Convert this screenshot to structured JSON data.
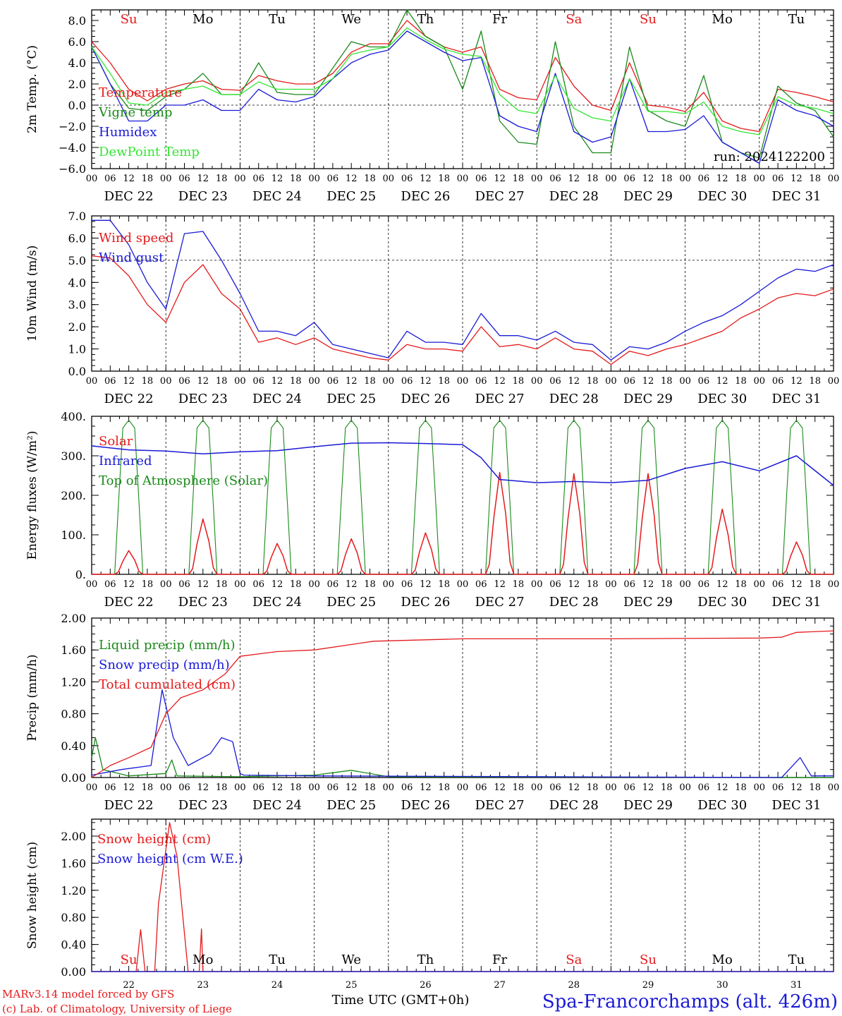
{
  "run_label": "run: 2024122200",
  "station_title": "Spa-Francorchamps (alt. 426m)",
  "footer_left": [
    "MARv3.14 model forced by GFS",
    "(c) Lab. of Climatology, University of Liege"
  ],
  "xlabel": "Time UTC (GMT+0h)",
  "hour_ticks": [
    "00",
    "06",
    "12",
    "18"
  ],
  "date_labels": [
    "DEC 22",
    "DEC 23",
    "DEC 24",
    "DEC 25",
    "DEC 26",
    "DEC 27",
    "DEC 28",
    "DEC 29",
    "DEC 30",
    "DEC 31"
  ],
  "weekdays": [
    {
      "label": "Su",
      "color": "#e41a1c"
    },
    {
      "label": "Mo",
      "color": "#000000"
    },
    {
      "label": "Tu",
      "color": "#000000"
    },
    {
      "label": "We",
      "color": "#000000"
    },
    {
      "label": "Th",
      "color": "#000000"
    },
    {
      "label": "Fr",
      "color": "#000000"
    },
    {
      "label": "Sa",
      "color": "#e41a1c"
    },
    {
      "label": "Su",
      "color": "#e41a1c"
    },
    {
      "label": "Mo",
      "color": "#000000"
    },
    {
      "label": "Tu",
      "color": "#000000"
    }
  ],
  "day_numbers": [
    "22",
    "23",
    "24",
    "25",
    "26",
    "27",
    "28",
    "29",
    "30",
    "31"
  ],
  "colors": {
    "red": "#e41a1c",
    "green": "#1a8a1a",
    "blue": "#1a1ad6",
    "lightgreen": "#33e633"
  },
  "chart_data": [
    {
      "type": "line",
      "ylabel": "2m Temp. (°C)",
      "ylim": [
        -6,
        9
      ],
      "yticks": [
        "8.0",
        "6.0",
        "4.0",
        "2.0",
        "0.0",
        "−2.0",
        "−4.0",
        "−6.0"
      ],
      "ytick_values": [
        8,
        6,
        4,
        2,
        0,
        -2,
        -4,
        -6
      ],
      "ref_line": 0,
      "x_days": [
        0,
        0.25,
        0.5,
        0.75,
        1,
        1.25,
        1.5,
        1.75,
        2,
        2.25,
        2.5,
        2.75,
        3,
        3.25,
        3.5,
        3.75,
        4,
        4.25,
        4.5,
        4.75,
        5,
        5.25,
        5.5,
        5.75,
        6,
        6.25,
        6.5,
        6.75,
        7,
        7.25,
        7.5,
        7.75,
        8,
        8.25,
        8.5,
        8.75,
        9,
        9.25,
        9.5,
        9.75,
        10
      ],
      "series": [
        {
          "name": "Temperature",
          "color": "red",
          "values": [
            6.0,
            4.0,
            1.5,
            0.4,
            1.5,
            2.0,
            2.3,
            1.5,
            1.4,
            2.8,
            2.3,
            2.0,
            2.0,
            3.0,
            5.0,
            5.8,
            5.8,
            8.0,
            6.5,
            5.5,
            5.0,
            5.5,
            1.5,
            0.7,
            0.5,
            4.5,
            1.8,
            0.0,
            -0.5,
            4.0,
            0.0,
            -0.2,
            -0.6,
            1.2,
            -1.5,
            -2.2,
            -2.5,
            1.5,
            1.2,
            0.8,
            0.3
          ]
        },
        {
          "name": "Vigne temp",
          "color": "green",
          "values": [
            5.5,
            2.0,
            -0.3,
            -0.5,
            0.8,
            1.5,
            3.0,
            1.0,
            1.0,
            4.0,
            1.2,
            1.0,
            1.0,
            3.5,
            6.0,
            5.5,
            5.5,
            9.0,
            6.5,
            5.5,
            1.5,
            7.0,
            -1.5,
            -3.5,
            -3.7,
            6.0,
            -2.0,
            -4.5,
            -4.5,
            5.5,
            -0.5,
            -1.5,
            -2.0,
            2.8,
            -3.5,
            -4.5,
            -5.0,
            1.8,
            0.2,
            -0.5,
            -3.0
          ]
        },
        {
          "name": "Humidex",
          "color": "blue",
          "values": [
            5.5,
            2.0,
            -1.5,
            -1.5,
            0.0,
            0.0,
            0.5,
            -0.5,
            -0.5,
            1.5,
            0.5,
            0.3,
            0.8,
            2.5,
            4.0,
            4.8,
            5.2,
            7.0,
            6.0,
            5.0,
            4.2,
            4.5,
            -1.0,
            -2.0,
            -2.5,
            3.0,
            -2.5,
            -3.5,
            -3.0,
            2.5,
            -2.5,
            -2.5,
            -2.3,
            -1.0,
            -3.5,
            -4.5,
            -5.5,
            0.5,
            -0.5,
            -1.0,
            -2.0
          ]
        },
        {
          "name": "DewPoint Temp",
          "color": "lightgreen",
          "values": [
            5.5,
            3.0,
            0.2,
            0.0,
            1.2,
            1.5,
            1.8,
            1.0,
            1.0,
            2.2,
            1.5,
            1.5,
            1.5,
            2.5,
            4.8,
            5.2,
            5.5,
            7.3,
            6.2,
            5.3,
            4.8,
            4.6,
            1.0,
            -0.5,
            -0.8,
            2.8,
            -0.3,
            -1.2,
            -1.5,
            2.5,
            -0.6,
            -0.6,
            -0.8,
            0.3,
            -2.0,
            -2.5,
            -2.8,
            0.8,
            0.0,
            -0.3,
            -0.8
          ]
        }
      ]
    },
    {
      "type": "line",
      "ylabel": "10m Wind (m/s)",
      "ylim": [
        0,
        7
      ],
      "yticks": [
        "7.0",
        "6.0",
        "5.0",
        "4.0",
        "3.0",
        "2.0",
        "1.0",
        "0.0"
      ],
      "ytick_values": [
        7,
        6,
        5,
        4,
        3,
        2,
        1,
        0
      ],
      "ref_line": 5,
      "x_days": [
        0,
        0.25,
        0.5,
        0.75,
        1,
        1.25,
        1.5,
        1.75,
        2,
        2.25,
        2.5,
        2.75,
        3,
        3.25,
        3.5,
        3.75,
        4,
        4.25,
        4.5,
        4.75,
        5,
        5.25,
        5.5,
        5.75,
        6,
        6.25,
        6.5,
        6.75,
        7,
        7.25,
        7.5,
        7.75,
        8,
        8.25,
        8.5,
        8.75,
        9,
        9.25,
        9.5,
        9.75,
        10
      ],
      "series": [
        {
          "name": "Wind speed",
          "color": "red",
          "values": [
            5.2,
            5.1,
            4.3,
            3.0,
            2.2,
            4.0,
            4.8,
            3.5,
            2.8,
            1.3,
            1.5,
            1.2,
            1.5,
            1.0,
            0.8,
            0.6,
            0.5,
            1.2,
            1.0,
            1.0,
            0.9,
            2.0,
            1.1,
            1.2,
            1.0,
            1.5,
            1.0,
            0.9,
            0.3,
            0.9,
            0.7,
            1.0,
            1.2,
            1.5,
            1.8,
            2.4,
            2.8,
            3.3,
            3.5,
            3.4,
            3.7
          ]
        },
        {
          "name": "Wind gust",
          "color": "blue",
          "values": [
            6.8,
            6.8,
            5.7,
            4.0,
            2.8,
            6.2,
            6.3,
            5.0,
            3.5,
            1.8,
            1.8,
            1.6,
            2.2,
            1.2,
            1.0,
            0.8,
            0.6,
            1.8,
            1.3,
            1.3,
            1.2,
            2.6,
            1.6,
            1.6,
            1.4,
            1.8,
            1.3,
            1.2,
            0.5,
            1.1,
            1.0,
            1.3,
            1.8,
            2.2,
            2.5,
            3.0,
            3.6,
            4.2,
            4.6,
            4.5,
            4.8
          ]
        }
      ]
    },
    {
      "type": "line",
      "ylabel": "Energy fluxes (W/m²)",
      "ylim": [
        0,
        400
      ],
      "yticks": [
        "400.",
        "300.",
        "200.",
        "100.",
        "0."
      ],
      "ytick_values": [
        400,
        300,
        200,
        100,
        0
      ],
      "diurnal": {
        "solar_peaks": [
          60,
          140,
          78,
          90,
          105,
          258,
          255,
          255,
          165,
          82
        ],
        "toa_peaks": [
          390,
          390,
          390,
          390,
          390,
          390,
          390,
          390,
          390,
          390
        ]
      },
      "series": [
        {
          "name": "Solar",
          "color": "red"
        },
        {
          "name": "Infrared",
          "color": "blue",
          "x_days": [
            0,
            0.5,
            1,
            1.5,
            2,
            2.5,
            3,
            3.5,
            4,
            4.5,
            5,
            5.25,
            5.5,
            6,
            6.5,
            7,
            7.5,
            8,
            8.5,
            9,
            9.5,
            10
          ],
          "values": [
            325,
            315,
            312,
            305,
            310,
            313,
            323,
            332,
            333,
            331,
            328,
            295,
            240,
            232,
            235,
            232,
            238,
            268,
            285,
            262,
            300,
            225
          ]
        },
        {
          "name": "Top of Atmosphere (Solar)",
          "color": "green"
        }
      ]
    },
    {
      "type": "line",
      "ylabel": "Precip (mm/h)",
      "ylim": [
        0,
        2
      ],
      "yticks": [
        "2.00",
        "1.60",
        "1.20",
        "0.80",
        "0.40",
        "0.00"
      ],
      "ytick_values": [
        2.0,
        1.6,
        1.2,
        0.8,
        0.4,
        0.0
      ],
      "series": [
        {
          "name": "Liquid precip (mm/h)",
          "color": "green",
          "x_days": [
            0,
            0.05,
            0.15,
            0.5,
            1,
            1.08,
            1.15,
            2,
            2.5,
            3,
            3.5,
            4,
            10
          ],
          "values": [
            0.25,
            0.5,
            0.1,
            0.02,
            0.05,
            0.22,
            0.02,
            0.01,
            0.02,
            0.03,
            0.09,
            0.01,
            0.0
          ]
        },
        {
          "name": "Snow precip (mm/h)",
          "color": "blue",
          "x_days": [
            0,
            0.4,
            0.8,
            0.95,
            1.0,
            1.1,
            1.3,
            1.6,
            1.75,
            1.9,
            2.0,
            2.05,
            3,
            9.3,
            9.55,
            9.7,
            10
          ],
          "values": [
            0.03,
            0.1,
            0.15,
            1.1,
            0.9,
            0.5,
            0.15,
            0.3,
            0.5,
            0.45,
            0.05,
            0.03,
            0.02,
            0.0,
            0.25,
            0.02,
            0.02
          ]
        },
        {
          "name": "Total cumulated (cm)",
          "color": "red",
          "x_days": [
            0,
            0.25,
            0.5,
            0.8,
            1.0,
            1.2,
            1.5,
            1.8,
            2.0,
            2.5,
            3.0,
            3.8,
            5.0,
            7.0,
            9.0,
            9.3,
            9.5,
            10
          ],
          "values": [
            0.0,
            0.15,
            0.25,
            0.38,
            0.8,
            1.0,
            1.1,
            1.3,
            1.52,
            1.58,
            1.6,
            1.71,
            1.74,
            1.74,
            1.75,
            1.76,
            1.82,
            1.84
          ]
        }
      ]
    },
    {
      "type": "line",
      "ylabel": "Snow height (cm)",
      "ylim": [
        0,
        2.25
      ],
      "yticks": [
        "2.00",
        "1.60",
        "1.20",
        "0.80",
        "0.40",
        "0.00"
      ],
      "ytick_values": [
        2.0,
        1.6,
        1.2,
        0.8,
        0.4,
        0.0
      ],
      "series": [
        {
          "name": "Snow height (cm)",
          "color": "red",
          "x_days": [
            0,
            0.6,
            0.66,
            0.72,
            0.85,
            0.9,
            1.05,
            1.15,
            1.3,
            1.45,
            1.48,
            1.5,
            1.53,
            1.56,
            10
          ],
          "values": [
            0.0,
            0.0,
            0.62,
            0.0,
            0.0,
            1.0,
            2.2,
            1.7,
            0.0,
            0.0,
            0.63,
            0.0,
            0.0,
            0.0,
            0.0
          ]
        },
        {
          "name": "Snow height (cm W.E.)",
          "color": "blue",
          "x_days": [
            0,
            10
          ],
          "values": [
            0.0,
            0.0
          ]
        }
      ]
    }
  ]
}
